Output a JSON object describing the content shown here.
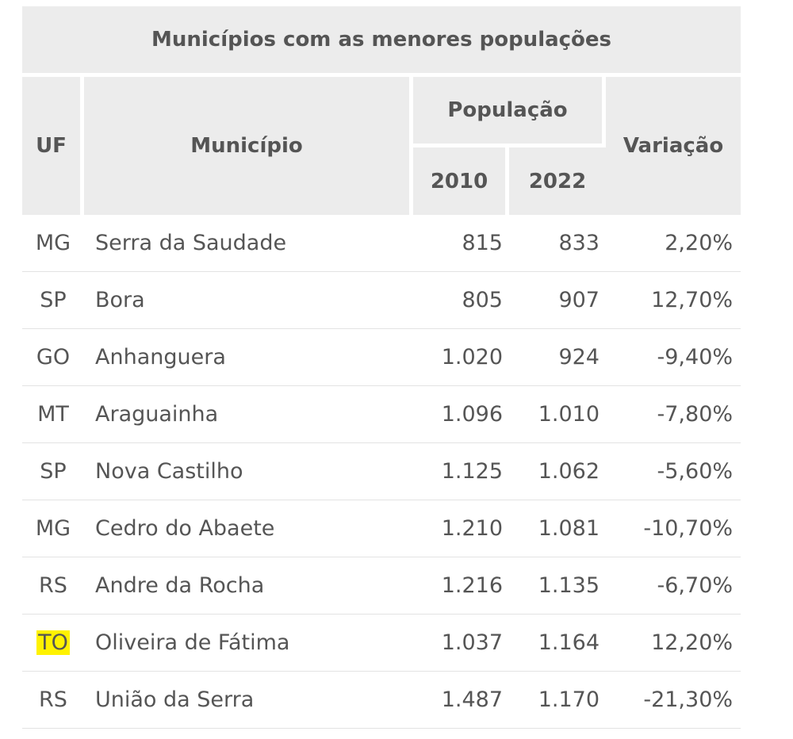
{
  "table": {
    "caption": "Municípios com as menores populações",
    "headers": {
      "uf": "UF",
      "municipio": "Município",
      "populacao": "População",
      "year_2010": "2010",
      "year_2022": "2022",
      "variacao": "Variação"
    },
    "highlight_color": "#fff200",
    "rows": [
      {
        "uf": "MG",
        "municipio": "Serra da Saudade",
        "p2010": "815",
        "p2022": "833",
        "variacao": "2,20%",
        "highlighted": false
      },
      {
        "uf": "SP",
        "municipio": "Bora",
        "p2010": "805",
        "p2022": "907",
        "variacao": "12,70%",
        "highlighted": false
      },
      {
        "uf": "GO",
        "municipio": "Anhanguera",
        "p2010": "1.020",
        "p2022": "924",
        "variacao": "-9,40%",
        "highlighted": false
      },
      {
        "uf": "MT",
        "municipio": "Araguainha",
        "p2010": "1.096",
        "p2022": "1.010",
        "variacao": "-7,80%",
        "highlighted": false
      },
      {
        "uf": "SP",
        "municipio": "Nova Castilho",
        "p2010": "1.125",
        "p2022": "1.062",
        "variacao": "-5,60%",
        "highlighted": false
      },
      {
        "uf": "MG",
        "municipio": "Cedro do Abaete",
        "p2010": "1.210",
        "p2022": "1.081",
        "variacao": "-10,70%",
        "highlighted": false
      },
      {
        "uf": "RS",
        "municipio": "Andre da Rocha",
        "p2010": "1.216",
        "p2022": "1.135",
        "variacao": "-6,70%",
        "highlighted": false
      },
      {
        "uf": "TO",
        "municipio": "Oliveira de Fátima",
        "p2010": "1.037",
        "p2022": "1.164",
        "variacao": "12,20%",
        "highlighted": true
      },
      {
        "uf": "RS",
        "municipio": "União da Serra",
        "p2010": "1.487",
        "p2022": "1.170",
        "variacao": "-21,30%",
        "highlighted": false
      }
    ]
  }
}
